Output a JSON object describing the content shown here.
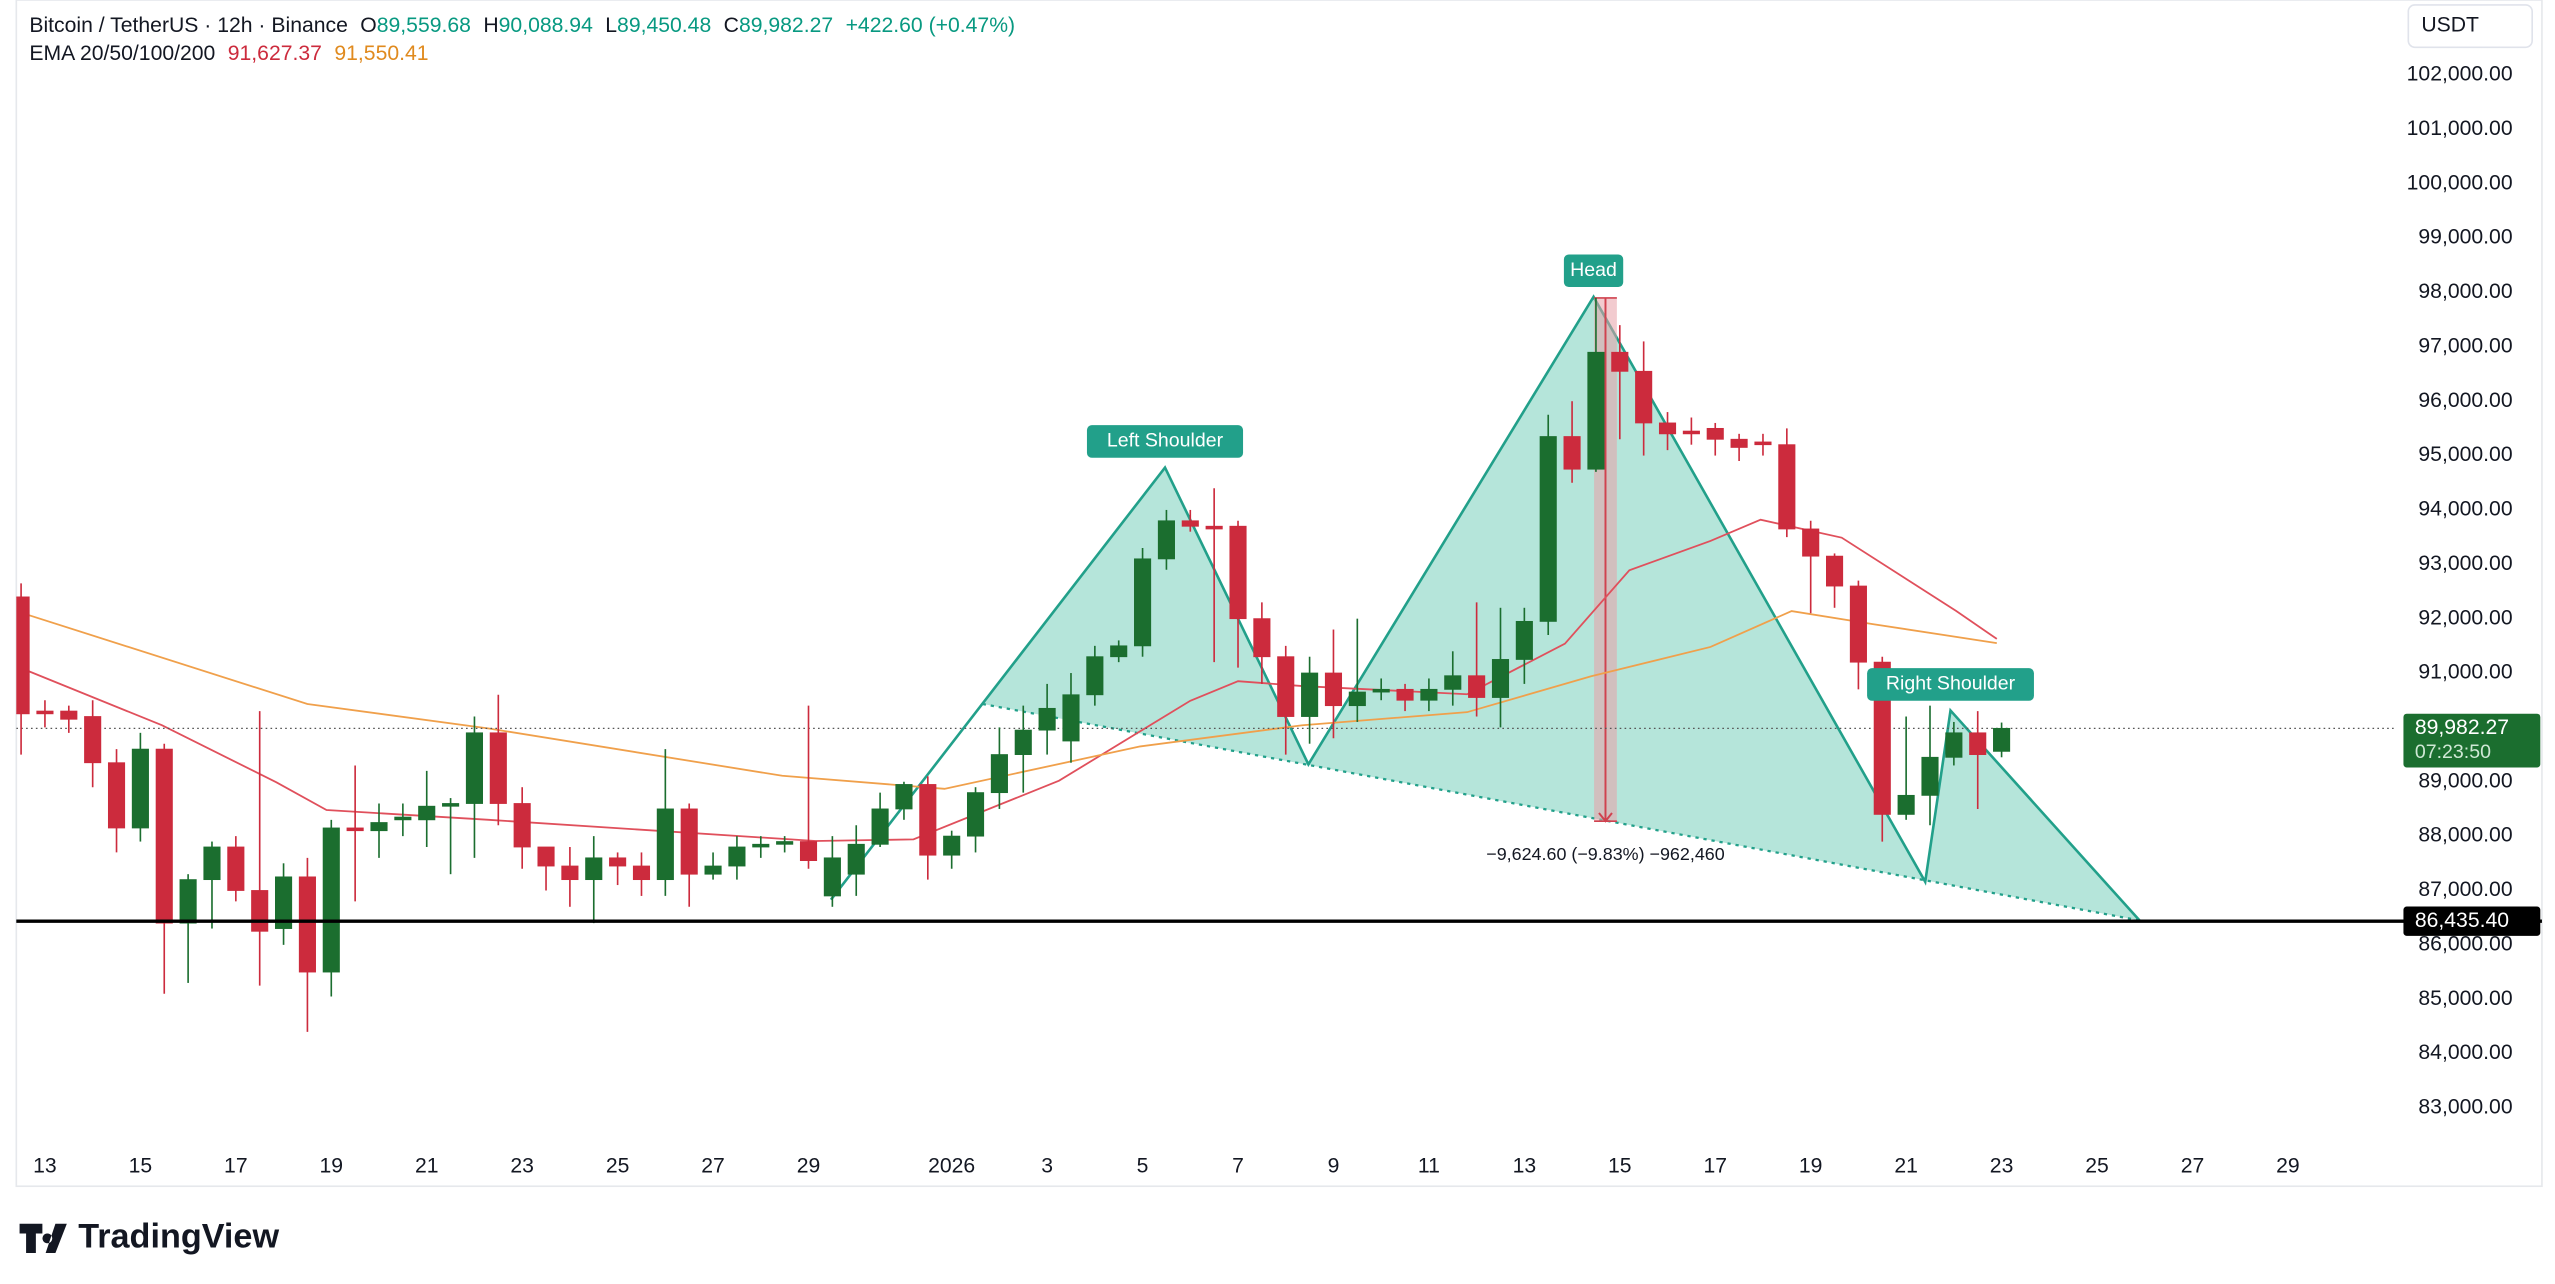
{
  "chart_data": {
    "type": "candlestick",
    "legend": {
      "symbol": "Bitcoin / TetherUS · 12h · Binance",
      "o_label": "O",
      "o": "89,559.68",
      "h_label": "H",
      "h": "90,088.94",
      "l_label": "L",
      "l": "89,450.48",
      "c_label": "C",
      "c": "89,982.27",
      "change": "+422.60 (+0.47%)",
      "ema_label": "EMA 20/50/100/200"
    },
    "currency": "USDT",
    "brand": "TradingView",
    "up_color": "#1b6e2f",
    "down_color": "#cc2b3d",
    "open": [
      92400,
      90300,
      90300,
      90200,
      89350,
      88150,
      89600,
      86400,
      87200,
      87800,
      87000,
      86300,
      87250,
      85500,
      88150,
      88100,
      88300,
      88300,
      88550,
      88600,
      89900,
      88600,
      87800,
      87450,
      87200,
      87600,
      87450,
      87200,
      88500,
      87300,
      87450,
      87800,
      87850,
      87900,
      86900,
      87300,
      87850,
      88500,
      88950,
      87650,
      88000,
      88800,
      89500,
      89950,
      89750,
      90600,
      91300,
      91500,
      93100,
      93800,
      93700,
      93700,
      92000,
      91300,
      90200,
      91000,
      90400,
      90650,
      90700,
      90500,
      90700,
      90950,
      90550,
      91250,
      91950,
      95350,
      94750,
      96900,
      96550,
      95600,
      95450,
      95500,
      95300,
      95250,
      95200,
      93650,
      93150,
      92600,
      91200,
      88400,
      88750,
      89450,
      89900,
      89559.68
    ],
    "high": [
      92650,
      90500,
      90400,
      90500,
      89600,
      89900,
      89700,
      87300,
      87900,
      88000,
      90300,
      87500,
      87600,
      88300,
      89300,
      88600,
      88600,
      89200,
      88700,
      90200,
      90600,
      88900,
      87800,
      87800,
      88000,
      87700,
      87700,
      89600,
      88600,
      87700,
      88000,
      88000,
      88000,
      90400,
      88000,
      88200,
      88800,
      89000,
      89100,
      88100,
      88900,
      90000,
      90400,
      90800,
      91000,
      91500,
      91600,
      93300,
      94000,
      94000,
      94400,
      93800,
      92300,
      91500,
      91300,
      91800,
      92000,
      90900,
      90800,
      90900,
      91400,
      92300,
      92200,
      92200,
      95750,
      96000,
      97900,
      97400,
      97100,
      95800,
      95700,
      95600,
      95400,
      95400,
      95500,
      93800,
      93200,
      92700,
      91300,
      90200,
      90400,
      90100,
      90300,
      90088.94
    ],
    "low": [
      89500,
      90000,
      89900,
      88900,
      87700,
      87900,
      85100,
      85300,
      86300,
      86800,
      85250,
      86000,
      84400,
      85050,
      86800,
      87600,
      88000,
      87800,
      87300,
      87600,
      88200,
      87400,
      87000,
      86700,
      86400,
      87100,
      86900,
      86900,
      86700,
      87200,
      87200,
      87600,
      87700,
      87400,
      86700,
      86900,
      87800,
      88300,
      87200,
      87400,
      87700,
      88500,
      88800,
      89500,
      89350,
      90400,
      91200,
      91300,
      92900,
      93600,
      91200,
      91100,
      90800,
      89500,
      89700,
      89800,
      90100,
      90500,
      90300,
      90300,
      90400,
      90200,
      90000,
      90800,
      91700,
      94500,
      94700,
      95300,
      95000,
      95100,
      95200,
      95000,
      94900,
      95000,
      93500,
      92100,
      92200,
      90700,
      87900,
      88300,
      88200,
      89300,
      88500,
      89450.48
    ],
    "close": [
      90250,
      90250,
      90150,
      89350,
      88150,
      89600,
      86400,
      87200,
      87800,
      87000,
      86250,
      87250,
      85500,
      88150,
      88100,
      88250,
      88350,
      88550,
      88600,
      89900,
      88600,
      87800,
      87450,
      87200,
      87600,
      87450,
      87200,
      88500,
      87300,
      87450,
      87800,
      87850,
      87900,
      87550,
      87600,
      87850,
      88500,
      88950,
      87650,
      88000,
      88800,
      89500,
      89950,
      90350,
      90600,
      91300,
      91500,
      93100,
      93800,
      93700,
      93650,
      92000,
      91300,
      90200,
      91000,
      90400,
      90650,
      90700,
      90500,
      90700,
      90950,
      90550,
      91250,
      91950,
      95350,
      94750,
      96900,
      96550,
      95600,
      95400,
      95400,
      95300,
      95150,
      95200,
      93650,
      93150,
      92600,
      91200,
      88400,
      88750,
      89450,
      89900,
      89500,
      89982.27
    ],
    "ema": [
      {
        "color": "#e0505c",
        "x": [
          0,
          5.9,
          10.7,
          12.8,
          19.6,
          33.3,
          37.4,
          43.5,
          49,
          51,
          53.7,
          60.6,
          64.7,
          67.4,
          70.8,
          72.9,
          76.3,
          81.1,
          82.8
        ],
        "values": [
          91090,
          90040,
          88990,
          88480,
          88300,
          87910,
          87940,
          89020,
          90490,
          90850,
          90760,
          90610,
          91540,
          92890,
          93430,
          93820,
          93490,
          92140,
          91627.37
        ],
        "last_value_label": "91,627.37"
      },
      {
        "color": "#f0a04b",
        "x": [
          0,
          12,
          19.6,
          31.9,
          38.7,
          46.9,
          53.7,
          60.6,
          65.8,
          70.8,
          74.2,
          77.6,
          82.8
        ],
        "values": [
          92110,
          90430,
          89980,
          89110,
          88870,
          89650,
          90040,
          90280,
          90940,
          91480,
          92140,
          91900,
          91550.41
        ],
        "last_value_label": "91,550.41"
      }
    ],
    "pattern": {
      "x": [
        33.94,
        47.94,
        53.95,
        65.9,
        79.8,
        80.86,
        88.78
      ],
      "y": [
        86830,
        94780,
        89320,
        97920,
        87160,
        90310,
        86450
      ],
      "labels": [
        "Left Shoulder",
        "Head",
        "Right Shoulder"
      ],
      "color": "#22a08a",
      "fill": "#a8e0d4"
    },
    "neckline": {
      "x": [
        40.3,
        88.78
      ],
      "y": [
        90430,
        86450
      ]
    },
    "measure": {
      "x": 66.4,
      "start": 97900,
      "end": 88275.4,
      "label": "−9,624.60 (−9.83%) −962,460"
    },
    "support": {
      "value": 86435.4,
      "label": "86,435.40"
    },
    "last_price": {
      "value": 89982.27,
      "label": "89,982.27",
      "countdown": "07:23:50"
    },
    "xlim": [
      -0.2,
      99.5
    ],
    "ylim": [
      81560,
      103380
    ],
    "xticks": [
      {
        "value": 1,
        "label": "13"
      },
      {
        "value": 5,
        "label": "15"
      },
      {
        "value": 9,
        "label": "17"
      },
      {
        "value": 13,
        "label": "19"
      },
      {
        "value": 17,
        "label": "21"
      },
      {
        "value": 21,
        "label": "23"
      },
      {
        "value": 25,
        "label": "25"
      },
      {
        "value": 29,
        "label": "27"
      },
      {
        "value": 33,
        "label": "29"
      },
      {
        "value": 39,
        "label": "2026"
      },
      {
        "value": 43,
        "label": "3"
      },
      {
        "value": 47,
        "label": "5"
      },
      {
        "value": 51,
        "label": "7"
      },
      {
        "value": 55,
        "label": "9"
      },
      {
        "value": 59,
        "label": "11"
      },
      {
        "value": 63,
        "label": "13"
      },
      {
        "value": 67,
        "label": "15"
      },
      {
        "value": 71,
        "label": "17"
      },
      {
        "value": 75,
        "label": "19"
      },
      {
        "value": 79,
        "label": "21"
      },
      {
        "value": 83,
        "label": "23"
      },
      {
        "value": 87,
        "label": "25"
      },
      {
        "value": 91,
        "label": "27"
      },
      {
        "value": 95,
        "label": "29"
      }
    ],
    "yticks": [
      {
        "value": 83000,
        "label": "83,000.00"
      },
      {
        "value": 84000,
        "label": "84,000.00"
      },
      {
        "value": 85000,
        "label": "85,000.00"
      },
      {
        "value": 86000,
        "label": "86,000.00"
      },
      {
        "value": 87000,
        "label": "87,000.00"
      },
      {
        "value": 88000,
        "label": "88,000.00"
      },
      {
        "value": 89000,
        "label": "89,000.00"
      },
      {
        "value": 90000,
        "label": "90,000.00"
      },
      {
        "value": 91000,
        "label": "91,000.00"
      },
      {
        "value": 92000,
        "label": "92,000.00"
      },
      {
        "value": 93000,
        "label": "93,000.00"
      },
      {
        "value": 94000,
        "label": "94,000.00"
      },
      {
        "value": 95000,
        "label": "95,000.00"
      },
      {
        "value": 96000,
        "label": "96,000.00"
      },
      {
        "value": 97000,
        "label": "97,000.00"
      },
      {
        "value": 98000,
        "label": "98,000.00"
      },
      {
        "value": 99000,
        "label": "99,000.00"
      },
      {
        "value": 100000,
        "label": "100,000.00"
      },
      {
        "value": 101000,
        "label": "101,000.00"
      },
      {
        "value": 102000,
        "label": "102,000.00"
      }
    ],
    "grid": false
  }
}
